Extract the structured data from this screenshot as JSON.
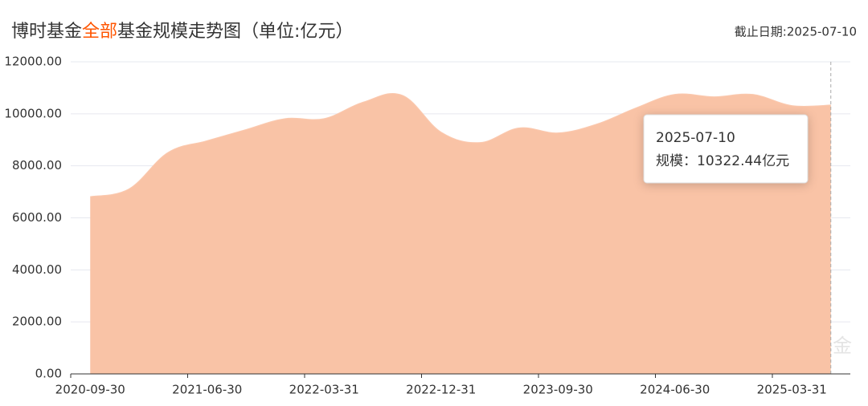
{
  "chart_data": {
    "type": "area",
    "title_parts": [
      "博时基金",
      "全部",
      "基金规模走势图（单位:亿元）"
    ],
    "title_highlight": 1,
    "as_of": "截止日期:2025-07-10",
    "watermark": "天天基金",
    "watermark_icon": "基金",
    "categories": [
      "2020-09-30",
      null,
      null,
      "2021-06-30",
      null,
      null,
      "2022-03-31",
      null,
      null,
      "2022-12-31",
      null,
      null,
      "2023-09-30",
      null,
      null,
      "2024-06-30",
      null,
      null,
      "2025-03-31",
      null
    ],
    "series": [
      {
        "name": "规模",
        "color": "#f9c3a6",
        "values": [
          6800,
          7100,
          8500,
          8950,
          9380,
          9800,
          9800,
          10430,
          10700,
          9280,
          8880,
          9440,
          9250,
          9590,
          10210,
          10730,
          10640,
          10730,
          10300,
          10322.44
        ]
      }
    ],
    "ylim": [
      0,
      12000
    ],
    "yticks": [
      {
        "value": 0,
        "label": "0.00"
      },
      {
        "value": 2000,
        "label": "2000.00"
      },
      {
        "value": 4000,
        "label": "4000.00"
      },
      {
        "value": 6000,
        "label": "6000.00"
      },
      {
        "value": 8000,
        "label": "8000.00"
      },
      {
        "value": 10000,
        "label": "10000.00"
      },
      {
        "value": 12000,
        "label": "12000.00"
      }
    ],
    "grid": true,
    "tooltip": {
      "date": "2025-07-10",
      "text": "规模：10322.44亿元"
    }
  }
}
